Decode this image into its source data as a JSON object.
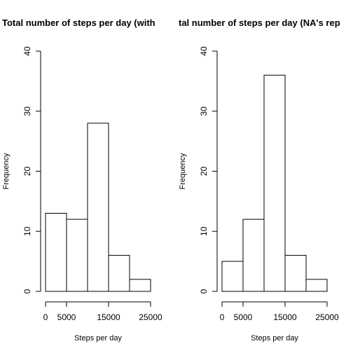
{
  "chart_data": [
    {
      "type": "bar",
      "title": "Total number of steps per day (with",
      "xlabel": "Steps per day",
      "ylabel": "Frequency",
      "bin_edges": [
        0,
        5000,
        10000,
        15000,
        20000,
        25000
      ],
      "values": [
        13,
        12,
        28,
        6,
        2
      ],
      "xlim": [
        0,
        25000
      ],
      "ylim": [
        0,
        40
      ],
      "x_ticks": [
        0,
        5000,
        15000,
        25000
      ],
      "y_ticks": [
        0,
        10,
        20,
        30,
        40
      ],
      "grid": false
    },
    {
      "type": "bar",
      "title": "tal number of steps per day (NA's rep",
      "xlabel": "Steps per day",
      "ylabel": "Frequency",
      "bin_edges": [
        0,
        5000,
        10000,
        15000,
        20000,
        25000
      ],
      "values": [
        5,
        12,
        36,
        6,
        2
      ],
      "xlim": [
        0,
        25000
      ],
      "ylim": [
        0,
        40
      ],
      "x_ticks": [
        0,
        5000,
        15000,
        25000
      ],
      "y_ticks": [
        0,
        10,
        20,
        30,
        40
      ],
      "grid": false
    }
  ]
}
